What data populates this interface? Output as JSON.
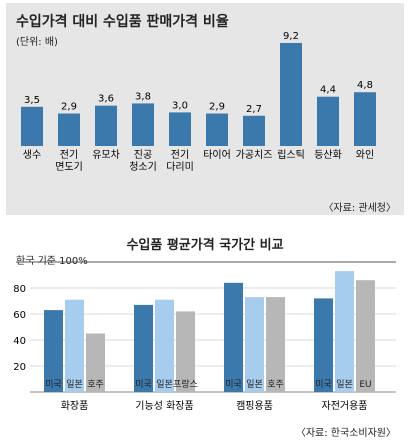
{
  "chart_data": [
    {
      "type": "bar",
      "title": "수입가격 대비 수입품 판매가격 비율",
      "unit_label": "(단위: 배)",
      "categories": [
        "생수",
        "전기\n면도기",
        "유모차",
        "진공\n청소기",
        "전기\n다리미",
        "타이어",
        "가공치즈",
        "립스틱",
        "등산화",
        "와인"
      ],
      "values": [
        3.5,
        2.9,
        3.6,
        3.8,
        3.0,
        2.9,
        2.7,
        9.2,
        4.4,
        4.8
      ],
      "value_labels": [
        "3,5",
        "2,9",
        "3,6",
        "3,8",
        "3,0",
        "2,9",
        "2,7",
        "9,2",
        "4,4",
        "4,8"
      ],
      "ylim": [
        0,
        10
      ],
      "source": "〈자료: 관세청〉",
      "colors": {
        "bar": "#3b79ad",
        "background": "#e6e6e6"
      }
    },
    {
      "type": "bar",
      "title": "수입품 평균가격 국가간 비교",
      "baseline_note": "한국 기준 100%",
      "ylim": [
        0,
        100
      ],
      "yticks": [
        20,
        40,
        60,
        80
      ],
      "grid": true,
      "groups": [
        {
          "name": "화장품",
          "bars": [
            {
              "label": "미국",
              "value": 63,
              "color": "#3b79ad"
            },
            {
              "label": "일본",
              "value": 71,
              "color": "#a7cdee"
            },
            {
              "label": "호주",
              "value": 45,
              "color": "#b7b7b7"
            }
          ]
        },
        {
          "name": "기능성 화장품",
          "bars": [
            {
              "label": "미국",
              "value": 67,
              "color": "#3b79ad"
            },
            {
              "label": "일본",
              "value": 71,
              "color": "#a7cdee"
            },
            {
              "label": "프랑스",
              "value": 62,
              "color": "#b7b7b7"
            }
          ]
        },
        {
          "name": "캠핑용품",
          "bars": [
            {
              "label": "미국",
              "value": 84,
              "color": "#3b79ad"
            },
            {
              "label": "일본",
              "value": 73,
              "color": "#a7cdee"
            },
            {
              "label": "호주",
              "value": 73,
              "color": "#b7b7b7"
            }
          ]
        },
        {
          "name": "자전거용품",
          "bars": [
            {
              "label": "미국",
              "value": 72,
              "color": "#3b79ad"
            },
            {
              "label": "일본",
              "value": 93,
              "color": "#a7cdee"
            },
            {
              "label": "EU",
              "value": 86,
              "color": "#b7b7b7"
            }
          ]
        }
      ],
      "source": "〈자료: 한국소비자원〉"
    }
  ]
}
